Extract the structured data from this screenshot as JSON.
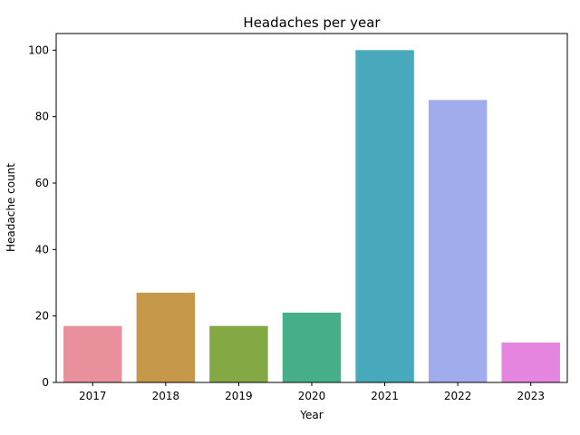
{
  "chart_data": {
    "type": "bar",
    "title": "Headaches per year",
    "xlabel": "Year",
    "ylabel": "Headache count",
    "categories": [
      "2017",
      "2018",
      "2019",
      "2020",
      "2021",
      "2022",
      "2023"
    ],
    "values": [
      17,
      27,
      17,
      21,
      100,
      85,
      12
    ],
    "colors": [
      "#e8919c",
      "#c6994a",
      "#84a843",
      "#47ae8a",
      "#47a9bb",
      "#a0acec",
      "#e585e0"
    ],
    "ylim": [
      0,
      105
    ],
    "yticks": [
      0,
      20,
      40,
      60,
      80,
      100
    ],
    "grid": false,
    "legend": "none"
  }
}
